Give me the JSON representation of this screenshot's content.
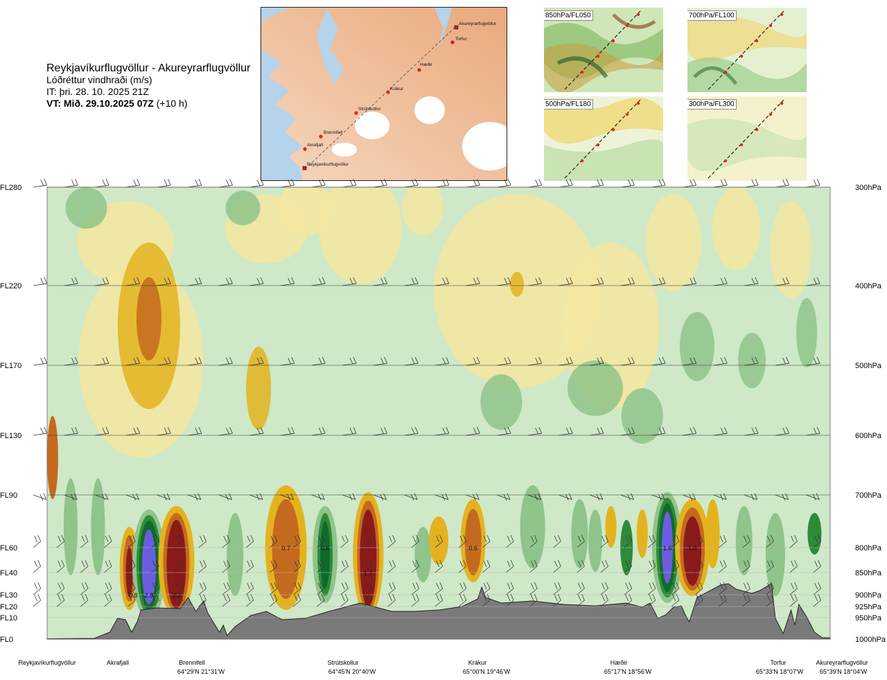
{
  "title": {
    "route": "Reykjavíkurflugvöllur - Akureyrarflugvöllur",
    "variable": "Lóðréttur vindhraði (m/s)",
    "it": "IT: þri. 28. 10. 2025 21Z",
    "vt_bold": "VT: Mið. 29.10.2025 07Z",
    "vt_rest": " (+10 h)"
  },
  "map": {
    "places": [
      "Akureyrarflugvöllur",
      "Torfur",
      "Hæðir",
      "Krákur",
      "Strútskollur",
      "Brennifell",
      "Akrafjall",
      "Reykjavíkurflugvöllur"
    ]
  },
  "thumbnails": [
    "850hPa/FL050",
    "700hPa/FL100",
    "500hPa/FL180",
    "300hPa/FL300"
  ],
  "chart_data": {
    "type": "heatmap",
    "title": "Lóðréttur vindhraði (m/s)",
    "left_axis": [
      "FL280",
      "FL220",
      "FL170",
      "FL130",
      "FL90",
      "FL60",
      "FL40",
      "FL30",
      "FL20",
      "FL10",
      "FL0"
    ],
    "right_axis": [
      "300hPa",
      "400hPa",
      "500hPa",
      "600hPa",
      "700hPa",
      "800hPa",
      "850hPa",
      "900hPa",
      "925hPa",
      "950hPa",
      "1000hPa"
    ],
    "waypoints": [
      {
        "name": "Reykjavíkurflugvöllur",
        "coord": ""
      },
      {
        "name": "Akrafjall",
        "coord": ""
      },
      {
        "name": "Brennifell",
        "coord": "64°29'N 21°31'W"
      },
      {
        "name": "Strútskollur",
        "coord": "64°45'N 20°40'W"
      },
      {
        "name": "Krákur",
        "coord": "65°00'N 19°46'W"
      },
      {
        "name": "Hæðir",
        "coord": "65°17'N 18°56'W"
      },
      {
        "name": "Torfur",
        "coord": "65°33'N 18°07'W"
      },
      {
        "name": "Akureyrarflugvöllur",
        "coord": "65°39'N 18°04'W"
      }
    ],
    "cell_labels": [
      {
        "text": "0.8",
        "fl": 30,
        "frac": 0.11
      },
      {
        "text": "2.8",
        "fl": 30,
        "frac": 0.13
      },
      {
        "text": "2.2",
        "fl": 30,
        "frac": 0.165
      },
      {
        "text": "0.7",
        "fl": 60,
        "frac": 0.305
      },
      {
        "text": "0.6",
        "fl": 60,
        "frac": 0.355
      },
      {
        "text": "1.7",
        "fl": 40,
        "frac": 0.41
      },
      {
        "text": "0.6",
        "fl": 60,
        "frac": 0.544
      },
      {
        "text": "1.6",
        "fl": 60,
        "frac": 0.792
      },
      {
        "text": "1.0",
        "fl": 60,
        "frac": 0.824
      }
    ],
    "colors": {
      "strong_down": "#8b1a1a",
      "mid_down": "#c46a1e",
      "down": "#e3b31f",
      "weak_down": "#f3e6a0",
      "neutral": "#fffbe6",
      "weak_up": "#cfe8c8",
      "up": "#8fc48a",
      "mid_up": "#2e8b3a",
      "strong_up": "#0f6b2a",
      "extreme_up": "#6b5de0",
      "terrain": "#7a7a7a"
    }
  }
}
